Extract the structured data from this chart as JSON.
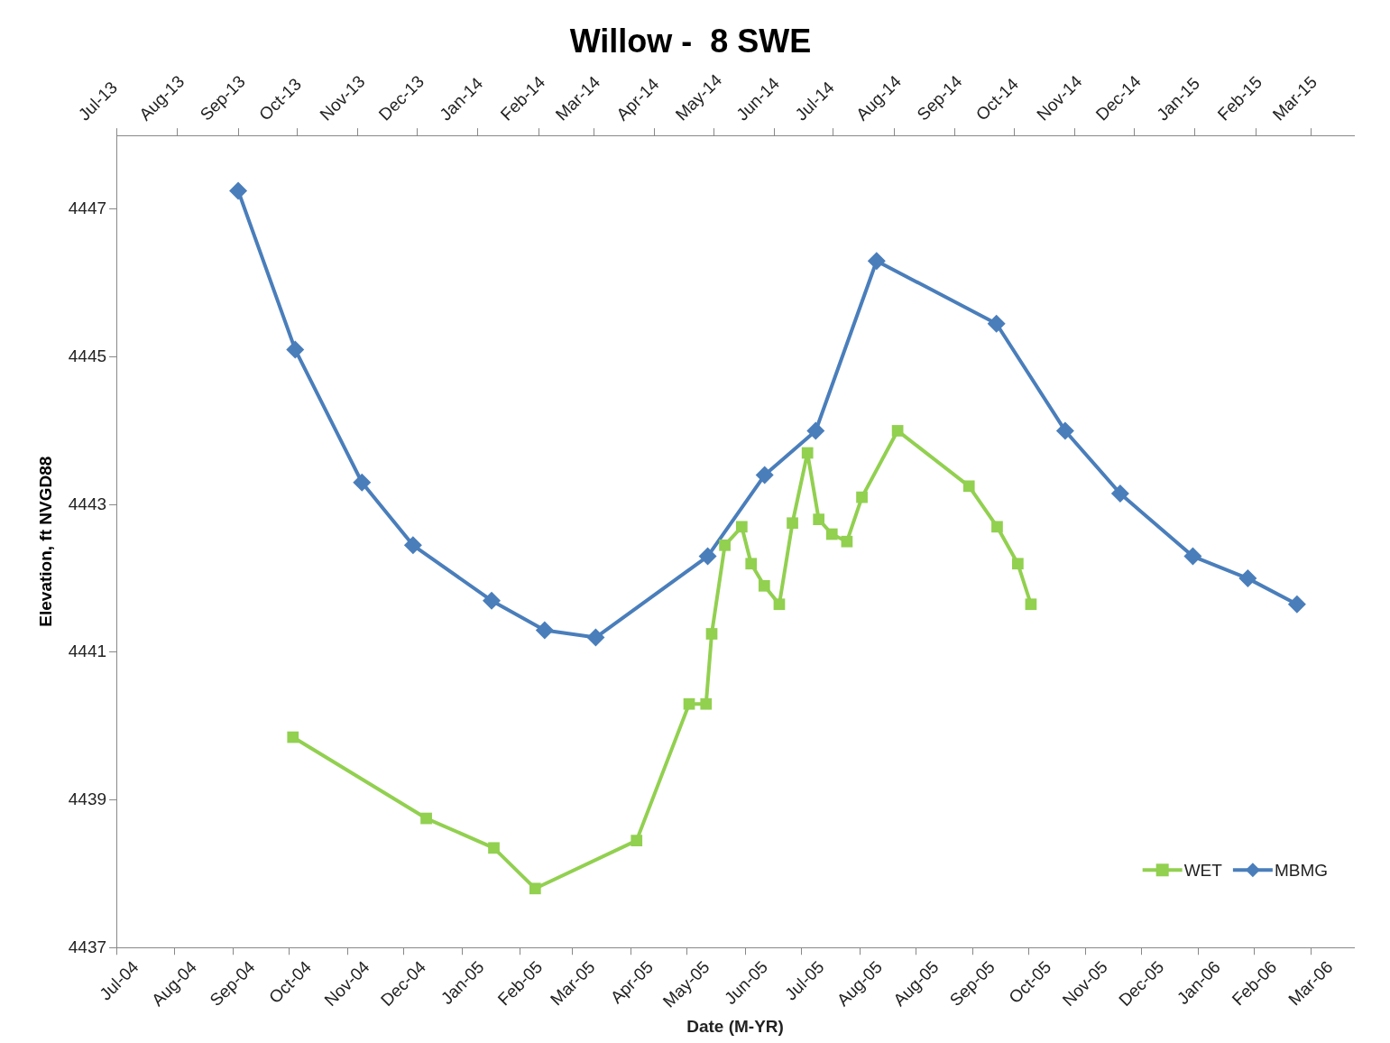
{
  "chart_data": {
    "type": "line",
    "title": "Willow -  8 SWE",
    "xlabel": "Date (M-YR)",
    "ylabel": "Elevation, ft NVGD88",
    "xlim": [
      "2004-07-01",
      "2006-04-21"
    ],
    "xticks": [
      {
        "value": "2004-07-01",
        "label": "Jul-04"
      },
      {
        "value": "2004-08-01",
        "label": "Aug-04"
      },
      {
        "value": "2004-09-01",
        "label": "Sep-04"
      },
      {
        "value": "2004-10-01",
        "label": "Oct-04"
      },
      {
        "value": "2004-11-01",
        "label": "Nov-04"
      },
      {
        "value": "2004-12-01",
        "label": "Dec-04"
      },
      {
        "value": "2005-01-01",
        "label": "Jan-05"
      },
      {
        "value": "2005-02-01",
        "label": "Feb-05"
      },
      {
        "value": "2005-03-01",
        "label": "Mar-05"
      },
      {
        "value": "2005-04-01",
        "label": "Apr-05"
      },
      {
        "value": "2005-05-01",
        "label": "May-05"
      },
      {
        "value": "2005-06-01",
        "label": "Jun-05"
      },
      {
        "value": "2005-07-01",
        "label": "Jul-05"
      },
      {
        "value": "2005-08-01",
        "label": "Aug-05"
      },
      {
        "value": "2005-08-31",
        "label": "Aug-05"
      },
      {
        "value": "2005-09-30",
        "label": "Sep-05"
      },
      {
        "value": "2005-10-30",
        "label": "Oct-05"
      },
      {
        "value": "2005-11-29",
        "label": "Nov-05"
      },
      {
        "value": "2005-12-29",
        "label": "Dec-05"
      },
      {
        "value": "2006-01-28",
        "label": "Jan-06"
      },
      {
        "value": "2006-02-27",
        "label": "Feb-06"
      },
      {
        "value": "2006-03-29",
        "label": "Mar-06"
      }
    ],
    "x2lim": [
      "2013-07-01",
      "2015-03-23"
    ],
    "x2ticks": [
      {
        "value": "2013-07-01",
        "label": "Jul-13"
      },
      {
        "value": "2013-08-01",
        "label": "Aug-13"
      },
      {
        "value": "2013-09-01",
        "label": "Sep-13"
      },
      {
        "value": "2013-10-01",
        "label": "Oct-13"
      },
      {
        "value": "2013-11-01",
        "label": "Nov-13"
      },
      {
        "value": "2013-12-01",
        "label": "Dec-13"
      },
      {
        "value": "2014-01-01",
        "label": "Jan-14"
      },
      {
        "value": "2014-02-01",
        "label": "Feb-14"
      },
      {
        "value": "2014-03-01",
        "label": "Mar-14"
      },
      {
        "value": "2014-04-01",
        "label": "Apr-14"
      },
      {
        "value": "2014-05-01",
        "label": "May-14"
      },
      {
        "value": "2014-06-01",
        "label": "Jun-14"
      },
      {
        "value": "2014-07-01",
        "label": "Jul-14"
      },
      {
        "value": "2014-08-01",
        "label": "Aug-14"
      },
      {
        "value": "2014-09-01",
        "label": "Sep-14"
      },
      {
        "value": "2014-10-01",
        "label": "Oct-14"
      },
      {
        "value": "2014-11-01",
        "label": "Nov-14"
      },
      {
        "value": "2014-12-01",
        "label": "Dec-14"
      },
      {
        "value": "2015-01-01",
        "label": "Jan-15"
      },
      {
        "value": "2015-02-01",
        "label": "Feb-15"
      },
      {
        "value": "2015-03-01",
        "label": "Mar-15"
      }
    ],
    "ylim": [
      4437,
      4448
    ],
    "yticks": [
      4437,
      4439,
      4441,
      4443,
      4445,
      4447
    ],
    "grid": false,
    "legend": "bottom right",
    "series": [
      {
        "name": "WET",
        "color": "#92d050",
        "marker": "square",
        "x": [
          "2004-10-03",
          "2004-12-13",
          "2005-01-18",
          "2005-02-09",
          "2005-04-04",
          "2005-05-02",
          "2005-05-11",
          "2005-05-14",
          "2005-05-21",
          "2005-05-30",
          "2005-06-04",
          "2005-06-11",
          "2005-06-19",
          "2005-06-26",
          "2005-07-04",
          "2005-07-10",
          "2005-07-17",
          "2005-07-25",
          "2005-08-02",
          "2005-08-21",
          "2005-09-28",
          "2005-10-13",
          "2005-10-24",
          "2005-10-31"
        ],
        "values": [
          4439.85,
          4438.75,
          4438.35,
          4437.8,
          4438.45,
          4440.3,
          4440.3,
          4441.25,
          4442.45,
          4442.7,
          4442.2,
          4441.9,
          4441.65,
          4442.75,
          4443.7,
          4442.8,
          4442.6,
          4442.5,
          4443.1,
          4444.0,
          4443.25,
          4442.7,
          4442.2,
          4441.65
        ]
      },
      {
        "name": "MBMG",
        "color": "#4a7ebb",
        "marker": "diamond",
        "axis": "x2",
        "x": [
          "2013-09-01",
          "2013-09-30",
          "2013-11-03",
          "2013-11-29",
          "2014-01-08",
          "2014-02-04",
          "2014-03-02",
          "2014-04-28",
          "2014-05-27",
          "2014-06-22",
          "2014-07-23",
          "2014-09-22",
          "2014-10-27",
          "2014-11-24",
          "2014-12-31",
          "2015-01-28",
          "2015-02-22"
        ],
        "values": [
          4447.25,
          4445.1,
          4443.3,
          4442.45,
          4441.7,
          4441.3,
          4441.2,
          4442.3,
          4443.4,
          4444.0,
          4446.3,
          4445.45,
          4444.0,
          4443.15,
          4442.3,
          4442.0,
          4441.65
        ]
      }
    ]
  }
}
